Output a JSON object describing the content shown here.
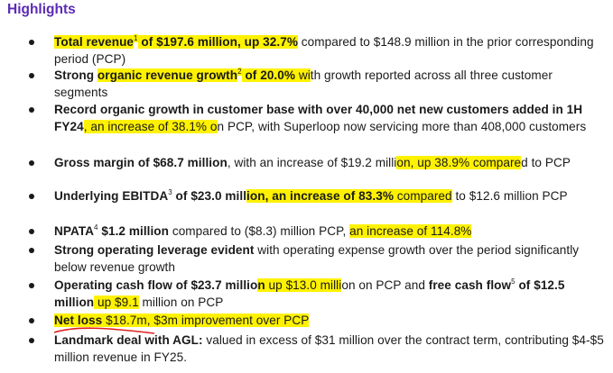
{
  "heading": "Highlights",
  "colors": {
    "heading": "#5b2bb5",
    "highlight": "#fff200",
    "underline": "#e02020"
  },
  "bullets": [
    {
      "segments": [
        {
          "text": "Total revenue",
          "bold": true,
          "hl": true
        },
        {
          "text": "1",
          "sup": true,
          "hl": true
        },
        {
          "text": " of $197.6 million, up 32.7%",
          "bold": true,
          "hl": true
        },
        {
          "text": " compared to $148.9 million in the prior corresponding period (PCP)"
        }
      ]
    },
    {
      "segments": [
        {
          "text": "Strong ",
          "bold": true
        },
        {
          "text": "organic revenue growth",
          "bold": true,
          "hl": true
        },
        {
          "text": "2",
          "sup": true,
          "hl": true
        },
        {
          "text": " of 20.0% ",
          "bold": true,
          "hl": true
        },
        {
          "text": "wi",
          "hl": true
        },
        {
          "text": "th growth reported across all three customer segments"
        }
      ]
    },
    {
      "segments": [
        {
          "text": "Record organic growth in customer base with over 40,000 net new customers added in 1H FY24",
          "bold": true
        },
        {
          "text": ", an increase of 38.1% o",
          "hl": true
        },
        {
          "text": "n PCP, with Superloop now servicing more than 408,000 customers"
        }
      ]
    },
    {
      "segments": [
        {
          "text": "Gross margin of $68.7 million",
          "bold": true
        },
        {
          "text": ", with an increase of $19.2 milli"
        },
        {
          "text": "on, up 38.9% compare",
          "hl": true
        },
        {
          "text": "d to PCP"
        }
      ]
    },
    {
      "segments": [
        {
          "text": "Underlying EBITDA",
          "bold": true
        },
        {
          "text": "3",
          "sup": true
        },
        {
          "text": " of $23.0 mill",
          "bold": true
        },
        {
          "text": "ion, an increase of 83.3%",
          "bold": true,
          "hl": true
        },
        {
          "text": " compared",
          "hl": true
        },
        {
          "text": " to $12.6 million PCP"
        }
      ]
    },
    {
      "segments": [
        {
          "text": "NPATA",
          "bold": true
        },
        {
          "text": "4",
          "sup": true
        },
        {
          "text": " $1.2 million",
          "bold": true
        },
        {
          "text": " compared to ($8.3) million PCP, "
        },
        {
          "text": "an increase of 114.8%   ",
          "hl": true
        }
      ]
    },
    {
      "segments": [
        {
          "text": "Strong operating leverage evident",
          "bold": true
        },
        {
          "text": " with operating expense growth over the period significantly below revenue growth"
        }
      ]
    },
    {
      "segments": [
        {
          "text": "Operating cash flow of $23.7 millio",
          "bold": true
        },
        {
          "text": "n",
          "bold": true,
          "hl": true
        },
        {
          "text": " up $13.0 milli",
          "hl": true
        },
        {
          "text": "on on PCP and "
        },
        {
          "text": "free cash flow",
          "bold": true
        },
        {
          "text": "5",
          "sup": true
        },
        {
          "text": " of $12.5 million",
          "bold": true
        },
        {
          "text": " up $9.1",
          "hl": true
        },
        {
          "text": " million on PCP"
        }
      ]
    },
    {
      "segments": [
        {
          "text": "Net loss",
          "bold": true,
          "hl": true
        },
        {
          "text": " $18.7m, $3m improvement over PCP",
          "hl": true
        }
      ]
    },
    {
      "segments": [
        {
          "text": "Landmark deal with AGL:",
          "bold": true
        },
        {
          "text": " valued in excess of $31 million over the contract term, contributing $4-$5 million revenue in FY25."
        }
      ]
    }
  ]
}
